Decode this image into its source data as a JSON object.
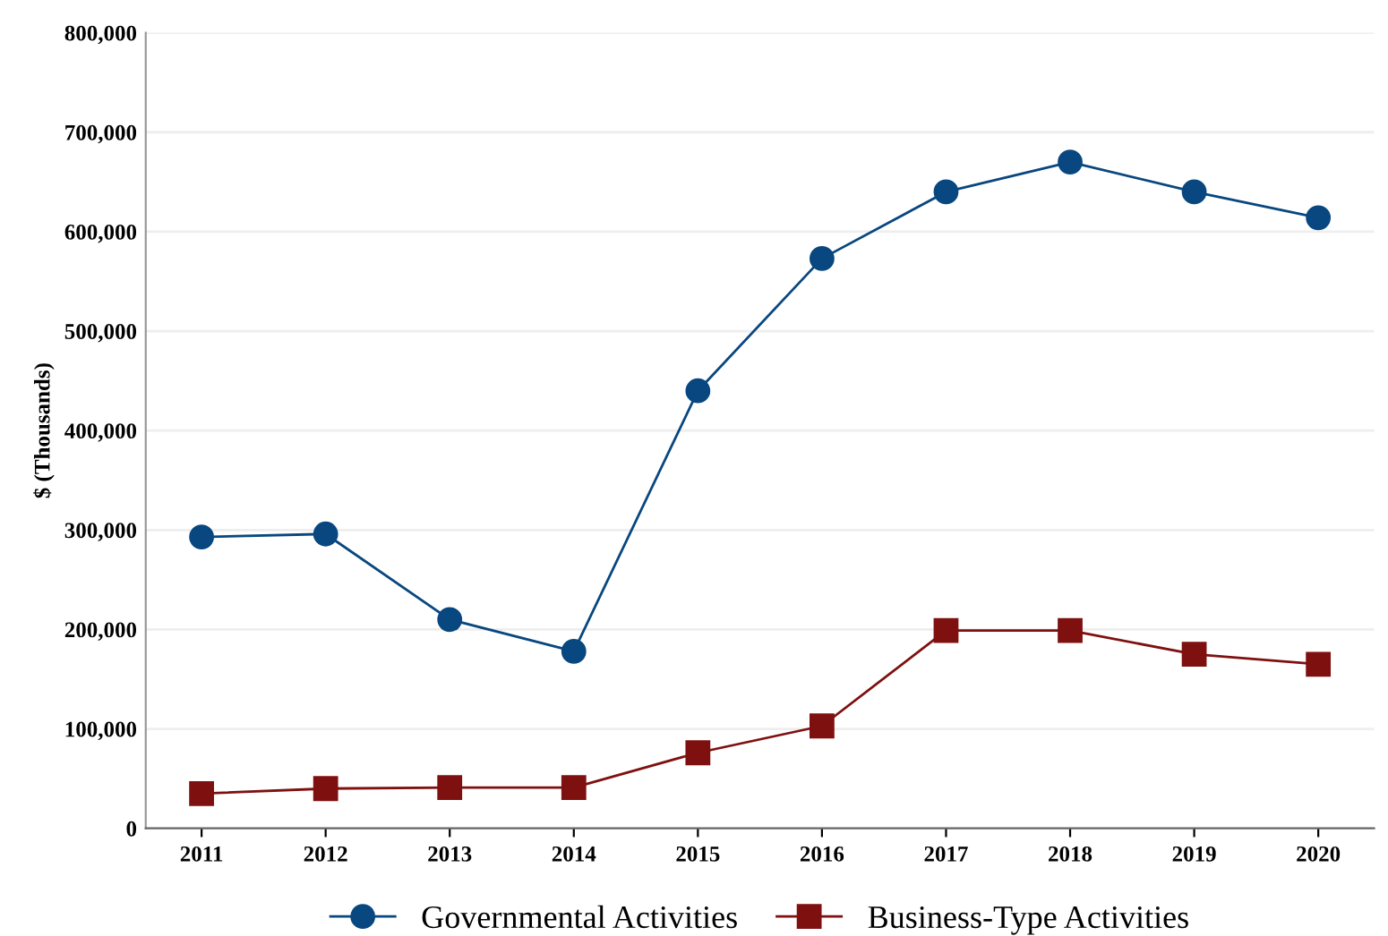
{
  "chart_data": {
    "type": "line",
    "ylabel": "$ (Thousands)",
    "categories": [
      "2011",
      "2012",
      "2013",
      "2014",
      "2015",
      "2016",
      "2017",
      "2018",
      "2019",
      "2020"
    ],
    "series": [
      {
        "name": "Governmental Activities",
        "color": "#08477f",
        "marker": "circle",
        "values": [
          293000,
          296000,
          210000,
          178000,
          440000,
          573000,
          640000,
          670000,
          640000,
          614000
        ]
      },
      {
        "name": "Business-Type Activities",
        "color": "#7f1010",
        "marker": "square",
        "values": [
          35000,
          40000,
          41000,
          41000,
          76000,
          103000,
          199000,
          199000,
          175000,
          165000
        ]
      }
    ],
    "ylim": [
      0,
      800000
    ],
    "yticks": [
      0,
      {
        "value": 100000,
        "label": "100,000"
      },
      {
        "value": 200000,
        "label": "200,000"
      },
      {
        "value": 300000,
        "label": "300,000"
      },
      {
        "value": 400000,
        "label": "400,000"
      },
      {
        "value": 500000,
        "label": "500,000"
      },
      {
        "value": 600000,
        "label": "600,000"
      },
      {
        "value": 700000,
        "label": "700,000"
      },
      {
        "value": 800000,
        "label": "800,000"
      }
    ],
    "grid": "y",
    "legend": "bottom",
    "line_style": "solid"
  }
}
